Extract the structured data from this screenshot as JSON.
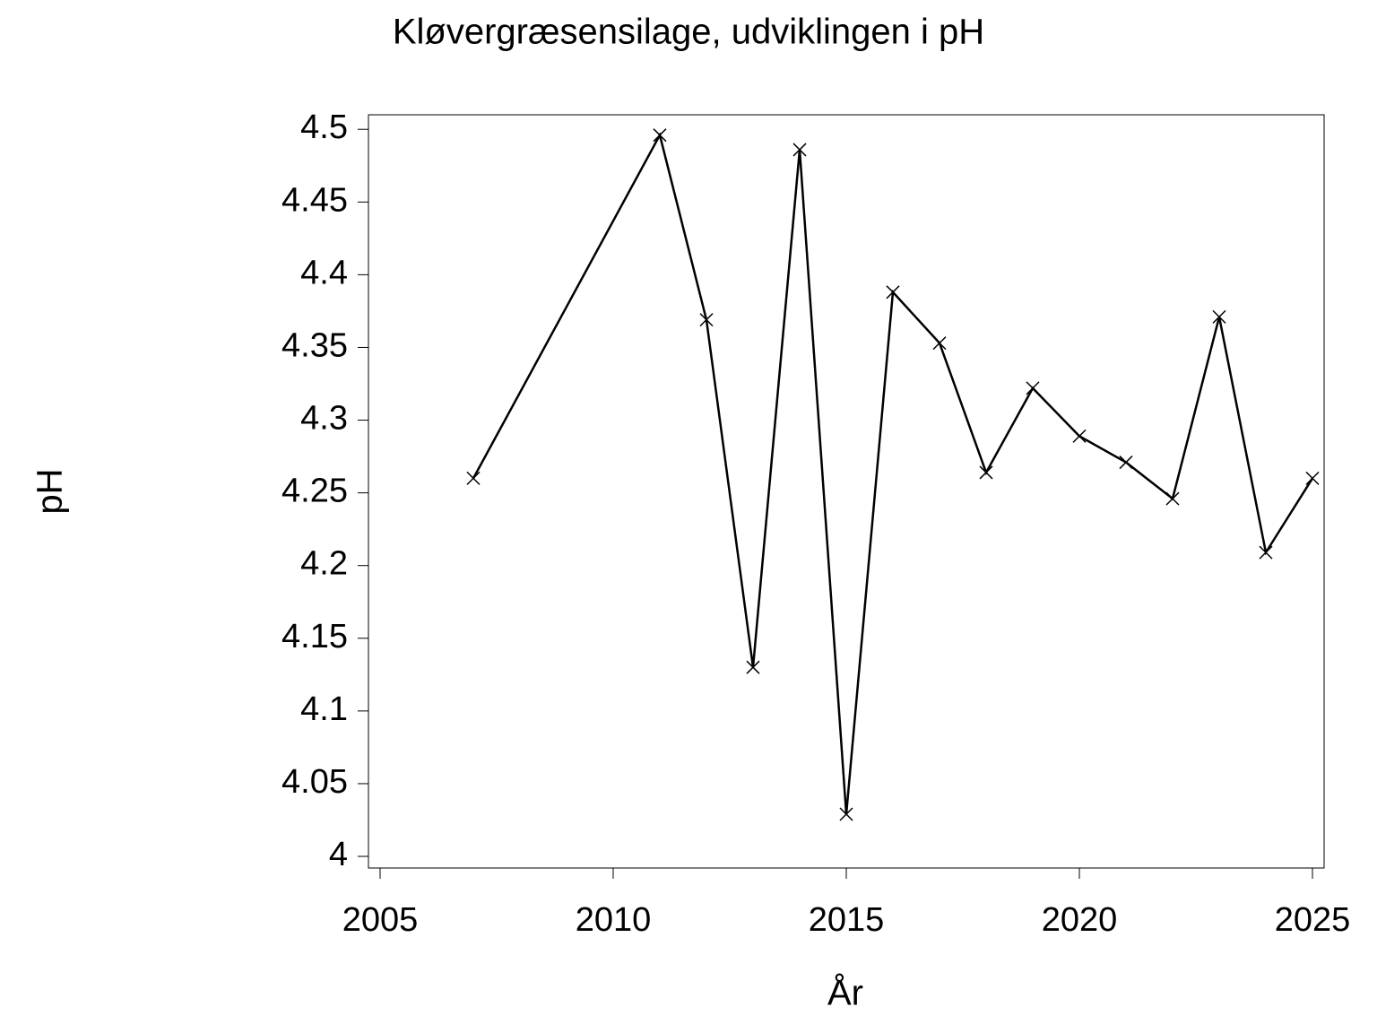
{
  "chart_data": {
    "type": "line",
    "title": "Kløvergræsensilage,  udviklingen  i  pH",
    "x_label": "År",
    "y_label": "pH",
    "x": [
      2007,
      2011,
      2012,
      2013,
      2014,
      2015,
      2016,
      2017,
      2018,
      2019,
      2020,
      2021,
      2022,
      2023,
      2024,
      2025
    ],
    "series": [
      {
        "color": "#000000",
        "values": [
          4.26,
          4.496,
          4.369,
          4.13,
          4.486,
          4.029,
          4.388,
          4.353,
          4.264,
          4.322,
          4.289,
          4.271,
          4.246,
          4.371,
          4.209,
          4.26
        ]
      }
    ],
    "marker": "x",
    "xlim": [
      2004.75,
      2025.25
    ],
    "xticks": [
      2005,
      2010,
      2015,
      2020,
      2025
    ],
    "ylim": [
      3.992,
      4.51
    ],
    "yticks": [
      4,
      4.05,
      4.1,
      4.15,
      4.2,
      4.25,
      4.3,
      4.35,
      4.4,
      4.45,
      4.5
    ]
  }
}
